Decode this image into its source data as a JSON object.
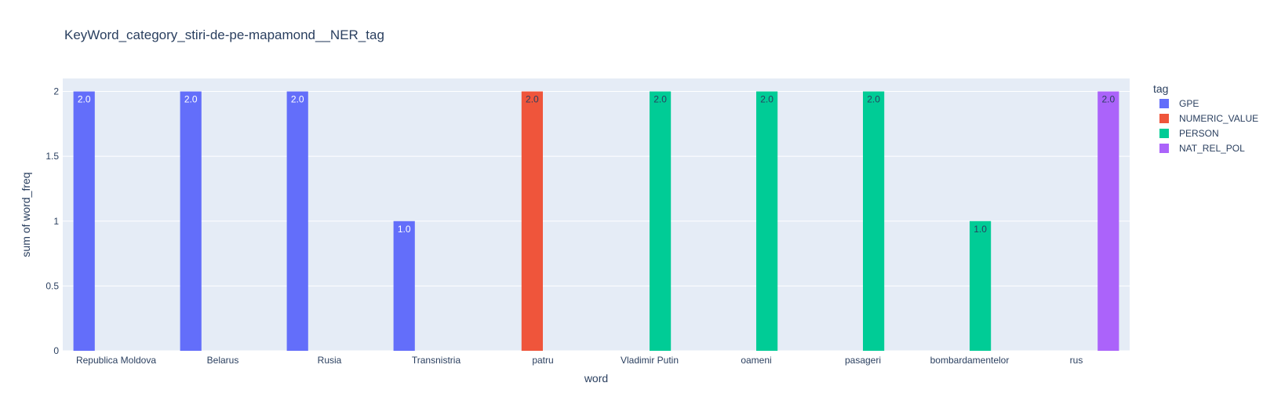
{
  "chart_data": {
    "type": "bar",
    "title": "KeyWord_category_stiri-de-pe-mapamond__NER_tag",
    "xlabel": "word",
    "ylabel": "sum of word_freq",
    "ylim": [
      0,
      2.1
    ],
    "yticks": [
      0,
      0.5,
      1,
      1.5,
      2
    ],
    "ytick_labels": [
      "0",
      "0.5",
      "1",
      "1.5",
      "2"
    ],
    "barmode": "group",
    "categories": [
      "Republica Moldova",
      "Belarus",
      "Rusia",
      "Transnistria",
      "patru",
      "Vladimir Putin",
      "oameni",
      "pasageri",
      "bombardamentelor",
      "rus"
    ],
    "legend_title": "tag",
    "legend_position": "right",
    "series": [
      {
        "name": "GPE",
        "color": "#636efa",
        "label_color": "#ffffff",
        "values": [
          2,
          2,
          2,
          1,
          null,
          null,
          null,
          null,
          null,
          null
        ],
        "labels": [
          "2.0",
          "2.0",
          "2.0",
          "1.0",
          "",
          "",
          "",
          "",
          "",
          ""
        ]
      },
      {
        "name": "NUMERIC_VALUE",
        "color": "#ef553b",
        "label_color": "#2a3f5f",
        "values": [
          null,
          null,
          null,
          null,
          2,
          null,
          null,
          null,
          null,
          null
        ],
        "labels": [
          "",
          "",
          "",
          "",
          "2.0",
          "",
          "",
          "",
          "",
          ""
        ]
      },
      {
        "name": "PERSON",
        "color": "#00cc96",
        "label_color": "#2a3f5f",
        "values": [
          null,
          null,
          null,
          null,
          null,
          2,
          2,
          2,
          1,
          null
        ],
        "labels": [
          "",
          "",
          "",
          "",
          "",
          "2.0",
          "2.0",
          "2.0",
          "1.0",
          ""
        ]
      },
      {
        "name": "NAT_REL_POL",
        "color": "#ab63fa",
        "label_color": "#2a3f5f",
        "values": [
          null,
          null,
          null,
          null,
          null,
          null,
          null,
          null,
          null,
          2
        ],
        "labels": [
          "",
          "",
          "",
          "",
          "",
          "",
          "",
          "",
          "",
          "2.0"
        ]
      }
    ],
    "colors": {
      "plot_background": "#e5ecf6",
      "gridline": "#ffffff",
      "text": "#2a3f5f"
    }
  }
}
